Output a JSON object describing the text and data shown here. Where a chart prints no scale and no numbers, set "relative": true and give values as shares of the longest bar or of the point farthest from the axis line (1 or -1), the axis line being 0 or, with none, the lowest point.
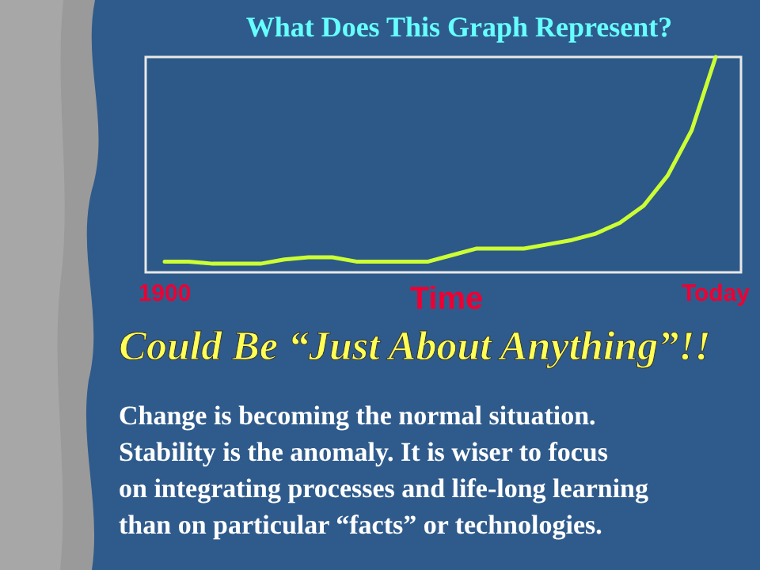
{
  "chart_data": {
    "type": "line",
    "title": "What Does This Graph Represent?",
    "xlabel": "Time",
    "relative": true,
    "categories": [
      "1900",
      null,
      null,
      null,
      null,
      null,
      null,
      null,
      null,
      null,
      null,
      null,
      null,
      null,
      null,
      null,
      null,
      null,
      null,
      null,
      null,
      null,
      null,
      "Today"
    ],
    "series": [
      {
        "color": "#ccff33",
        "values": [
          0.05,
          0.05,
          0.04,
          0.04,
          0.04,
          0.06,
          0.07,
          0.07,
          0.05,
          0.05,
          0.05,
          0.05,
          0.08,
          0.11,
          0.11,
          0.11,
          0.13,
          0.15,
          0.18,
          0.23,
          0.31,
          0.45,
          0.66,
          1
        ]
      }
    ],
    "annotations": [
      "Could Be “Just About Anything”!!",
      "Change is becoming the normal situation.",
      "Stability is the anomaly.  It is wiser to focus",
      "on integrating processes and life-long learning",
      "than on particular “facts” or technologies."
    ],
    "grid": false,
    "legend": false,
    "marker": "none",
    "line_style": "solid"
  }
}
